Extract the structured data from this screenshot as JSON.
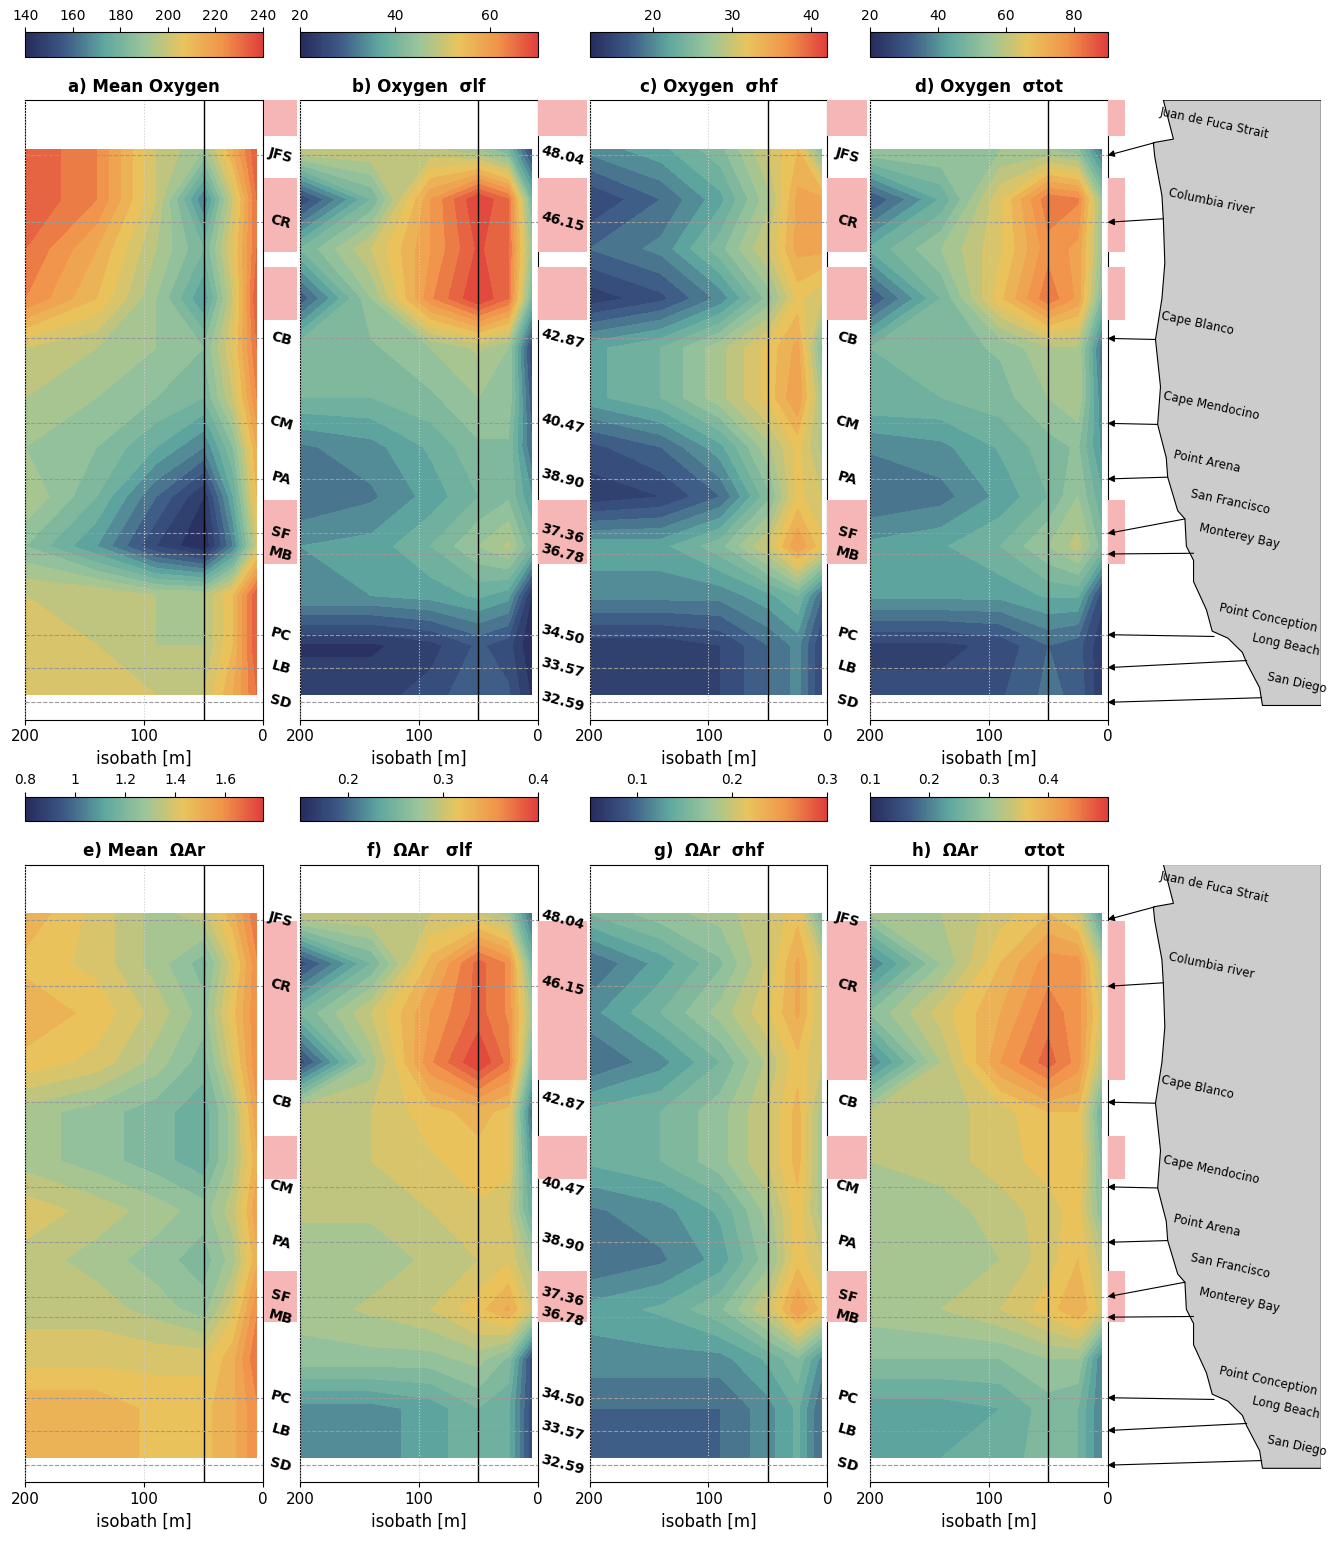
{
  "chart_data": [
    {
      "type": "heatmap",
      "title": "a) Mean Oxygen",
      "xlabel": "isobath [m]",
      "x": [
        200,
        140,
        90,
        50,
        25,
        5
      ],
      "y": [
        48.2,
        46.8,
        45.4,
        44.0,
        42.6,
        41.2,
        39.8,
        38.4,
        37.0,
        35.6,
        34.2,
        32.8
      ],
      "cells": [
        [
          235,
          225,
          200,
          190,
          215,
          235
        ],
        [
          235,
          225,
          200,
          165,
          200,
          230
        ],
        [
          230,
          215,
          195,
          180,
          205,
          230
        ],
        [
          225,
          210,
          190,
          170,
          200,
          235
        ],
        [
          200,
          195,
          190,
          185,
          205,
          230
        ],
        [
          195,
          190,
          185,
          180,
          200,
          225
        ],
        [
          190,
          185,
          175,
          165,
          185,
          215
        ],
        [
          195,
          180,
          160,
          145,
          175,
          210
        ],
        [
          185,
          170,
          150,
          140,
          165,
          200
        ],
        [
          200,
          200,
          195,
          195,
          210,
          235
        ],
        [
          205,
          200,
          195,
          195,
          210,
          235
        ],
        [
          205,
          205,
          200,
          200,
          215,
          230
        ]
      ],
      "xlim": [
        200,
        0
      ],
      "xticks": [
        200,
        100,
        0
      ],
      "colorbar_range": [
        140,
        240
      ],
      "colorbar_ticks": [
        140,
        160,
        180,
        200,
        220,
        240
      ],
      "vline": 50,
      "grid": true,
      "tick_labels": "x"
    },
    {
      "type": "heatmap",
      "title": "b) Oxygen  σlf",
      "xlabel": "isobath [m]",
      "x": [
        200,
        140,
        90,
        50,
        25,
        5
      ],
      "y": [
        48.2,
        46.8,
        45.4,
        44.0,
        42.6,
        41.2,
        39.8,
        38.4,
        37.0,
        35.6,
        34.2,
        32.8
      ],
      "cells": [
        [
          50,
          50,
          48,
          45,
          40,
          25
        ],
        [
          25,
          40,
          60,
          70,
          65,
          40
        ],
        [
          40,
          50,
          60,
          68,
          65,
          45
        ],
        [
          28,
          45,
          62,
          70,
          65,
          40
        ],
        [
          42,
          42,
          45,
          48,
          45,
          25
        ],
        [
          40,
          40,
          42,
          45,
          45,
          28
        ],
        [
          32,
          34,
          38,
          42,
          42,
          30
        ],
        [
          30,
          32,
          36,
          40,
          42,
          35
        ],
        [
          35,
          36,
          40,
          45,
          48,
          40
        ],
        [
          35,
          35,
          36,
          38,
          36,
          22
        ],
        [
          22,
          22,
          24,
          28,
          26,
          20
        ],
        [
          24,
          24,
          26,
          30,
          28,
          22
        ]
      ],
      "xlim": [
        200,
        0
      ],
      "xticks": [
        200,
        100,
        0
      ],
      "colorbar_range": [
        20,
        70
      ],
      "colorbar_ticks": [
        20,
        40,
        60
      ],
      "vline": 50,
      "grid": true,
      "tick_labels": "x"
    },
    {
      "type": "heatmap",
      "title": "c) Oxygen  σhf",
      "xlabel": "isobath [m]",
      "x": [
        200,
        140,
        90,
        50,
        25,
        5
      ],
      "y": [
        48.2,
        46.8,
        45.4,
        44.0,
        42.6,
        41.2,
        39.8,
        38.4,
        37.0,
        35.6,
        34.2,
        32.8
      ],
      "cells": [
        [
          20,
          22,
          25,
          30,
          33,
          25
        ],
        [
          15,
          18,
          22,
          28,
          35,
          35
        ],
        [
          18,
          20,
          25,
          30,
          35,
          35
        ],
        [
          14,
          16,
          20,
          26,
          32,
          30
        ],
        [
          22,
          24,
          28,
          32,
          35,
          25
        ],
        [
          22,
          24,
          28,
          32,
          36,
          28
        ],
        [
          16,
          18,
          22,
          28,
          32,
          28
        ],
        [
          14,
          15,
          18,
          25,
          32,
          30
        ],
        [
          22,
          22,
          25,
          30,
          36,
          32
        ],
        [
          20,
          20,
          20,
          22,
          24,
          18
        ],
        [
          14,
          14,
          15,
          18,
          20,
          15
        ],
        [
          14,
          14,
          15,
          18,
          20,
          15
        ]
      ],
      "xlim": [
        200,
        0
      ],
      "xticks": [
        200,
        100,
        0
      ],
      "colorbar_range": [
        12,
        42
      ],
      "colorbar_ticks": [
        20,
        30,
        40
      ],
      "vline": 50,
      "grid": true,
      "tick_labels": "x"
    },
    {
      "type": "heatmap",
      "title": "d) Oxygen  σtot",
      "xlabel": "isobath [m]",
      "x": [
        200,
        140,
        90,
        50,
        25,
        5
      ],
      "y": [
        48.2,
        46.8,
        45.4,
        44.0,
        42.6,
        41.2,
        39.8,
        38.4,
        37.0,
        35.6,
        34.2,
        32.8
      ],
      "cells": [
        [
          55,
          55,
          55,
          55,
          52,
          35
        ],
        [
          30,
          45,
          65,
          82,
          80,
          55
        ],
        [
          45,
          55,
          65,
          78,
          75,
          55
        ],
        [
          30,
          48,
          68,
          82,
          75,
          50
        ],
        [
          48,
          50,
          52,
          58,
          58,
          35
        ],
        [
          48,
          48,
          50,
          55,
          58,
          38
        ],
        [
          38,
          40,
          45,
          50,
          52,
          40
        ],
        [
          34,
          36,
          42,
          48,
          55,
          45
        ],
        [
          42,
          44,
          48,
          55,
          60,
          50
        ],
        [
          42,
          42,
          42,
          45,
          45,
          28
        ],
        [
          26,
          26,
          28,
          34,
          32,
          24
        ],
        [
          28,
          28,
          30,
          35,
          33,
          24
        ]
      ],
      "xlim": [
        200,
        0
      ],
      "xticks": [
        200,
        100,
        0
      ],
      "colorbar_range": [
        20,
        90
      ],
      "colorbar_ticks": [
        20,
        40,
        60,
        80
      ],
      "vline": 50,
      "grid": true,
      "tick_labels": "x"
    },
    {
      "type": "heatmap",
      "title": "e) Mean  ΩAr",
      "xlabel": "isobath [m]",
      "x": [
        200,
        140,
        90,
        50,
        25,
        5
      ],
      "y": [
        48.2,
        46.8,
        45.4,
        44.0,
        42.6,
        41.2,
        39.8,
        38.4,
        37.0,
        35.6,
        34.2,
        32.8
      ],
      "cells": [
        [
          1.5,
          1.4,
          1.3,
          1.35,
          1.5,
          1.65
        ],
        [
          1.45,
          1.4,
          1.3,
          1.2,
          1.4,
          1.6
        ],
        [
          1.5,
          1.45,
          1.35,
          1.25,
          1.45,
          1.6
        ],
        [
          1.45,
          1.4,
          1.3,
          1.2,
          1.4,
          1.6
        ],
        [
          1.3,
          1.25,
          1.2,
          1.15,
          1.3,
          1.55
        ],
        [
          1.3,
          1.25,
          1.2,
          1.15,
          1.3,
          1.5
        ],
        [
          1.4,
          1.35,
          1.3,
          1.25,
          1.35,
          1.55
        ],
        [
          1.35,
          1.3,
          1.25,
          1.2,
          1.3,
          1.5
        ],
        [
          1.35,
          1.35,
          1.3,
          1.25,
          1.4,
          1.6
        ],
        [
          1.4,
          1.4,
          1.4,
          1.4,
          1.5,
          1.65
        ],
        [
          1.5,
          1.5,
          1.45,
          1.45,
          1.5,
          1.6
        ],
        [
          1.5,
          1.5,
          1.45,
          1.45,
          1.5,
          1.6
        ]
      ],
      "xlim": [
        200,
        0
      ],
      "xticks": [
        200,
        100,
        0
      ],
      "colorbar_range": [
        0.8,
        1.75
      ],
      "colorbar_ticks": [
        0.8,
        1,
        1.2,
        1.4,
        1.6
      ],
      "vline": 50,
      "grid": true,
      "tick_labels": "x"
    },
    {
      "type": "heatmap",
      "title": "f)  ΩAr   σlf",
      "xlabel": "isobath [m]",
      "x": [
        200,
        140,
        90,
        50,
        25,
        5
      ],
      "y": [
        48.2,
        46.8,
        45.4,
        44.0,
        42.6,
        41.2,
        39.8,
        38.4,
        37.0,
        35.6,
        34.2,
        32.8
      ],
      "cells": [
        [
          0.3,
          0.3,
          0.3,
          0.3,
          0.28,
          0.2
        ],
        [
          0.18,
          0.25,
          0.33,
          0.38,
          0.36,
          0.25
        ],
        [
          0.25,
          0.3,
          0.35,
          0.38,
          0.36,
          0.28
        ],
        [
          0.18,
          0.28,
          0.36,
          0.4,
          0.37,
          0.25
        ],
        [
          0.3,
          0.3,
          0.32,
          0.33,
          0.32,
          0.2
        ],
        [
          0.3,
          0.3,
          0.31,
          0.32,
          0.32,
          0.22
        ],
        [
          0.29,
          0.29,
          0.3,
          0.31,
          0.3,
          0.24
        ],
        [
          0.28,
          0.28,
          0.29,
          0.3,
          0.31,
          0.28
        ],
        [
          0.28,
          0.29,
          0.3,
          0.32,
          0.34,
          0.3
        ],
        [
          0.27,
          0.27,
          0.27,
          0.28,
          0.26,
          0.18
        ],
        [
          0.22,
          0.22,
          0.23,
          0.25,
          0.24,
          0.18
        ],
        [
          0.22,
          0.22,
          0.23,
          0.25,
          0.24,
          0.18
        ]
      ],
      "xlim": [
        200,
        0
      ],
      "xticks": [
        200,
        100,
        0
      ],
      "colorbar_range": [
        0.15,
        0.4
      ],
      "colorbar_ticks": [
        0.2,
        0.3,
        0.4
      ],
      "vline": 50,
      "grid": true,
      "tick_labels": "x"
    },
    {
      "type": "heatmap",
      "title": "g)  ΩAr  σhf",
      "xlabel": "isobath [m]",
      "x": [
        200,
        140,
        90,
        50,
        25,
        5
      ],
      "y": [
        48.2,
        46.8,
        45.4,
        44.0,
        42.6,
        41.2,
        39.8,
        38.4,
        37.0,
        35.6,
        34.2,
        32.8
      ],
      "cells": [
        [
          0.15,
          0.17,
          0.18,
          0.2,
          0.22,
          0.15
        ],
        [
          0.1,
          0.13,
          0.16,
          0.2,
          0.24,
          0.2
        ],
        [
          0.12,
          0.15,
          0.18,
          0.21,
          0.24,
          0.2
        ],
        [
          0.1,
          0.12,
          0.15,
          0.19,
          0.22,
          0.2
        ],
        [
          0.14,
          0.15,
          0.17,
          0.2,
          0.23,
          0.18
        ],
        [
          0.14,
          0.15,
          0.17,
          0.2,
          0.23,
          0.18
        ],
        [
          0.11,
          0.12,
          0.14,
          0.18,
          0.22,
          0.18
        ],
        [
          0.1,
          0.11,
          0.13,
          0.17,
          0.22,
          0.2
        ],
        [
          0.13,
          0.14,
          0.16,
          0.2,
          0.25,
          0.22
        ],
        [
          0.12,
          0.12,
          0.12,
          0.14,
          0.16,
          0.12
        ],
        [
          0.1,
          0.1,
          0.1,
          0.12,
          0.14,
          0.1
        ],
        [
          0.1,
          0.1,
          0.1,
          0.12,
          0.14,
          0.1
        ]
      ],
      "xlim": [
        200,
        0
      ],
      "xticks": [
        200,
        100,
        0
      ],
      "colorbar_range": [
        0.05,
        0.3
      ],
      "colorbar_ticks": [
        0.1,
        0.2,
        0.3
      ],
      "vline": 50,
      "grid": true,
      "tick_labels": "x"
    },
    {
      "type": "heatmap",
      "title": "h)  ΩAr        σtot",
      "xlabel": "isobath [m]",
      "x": [
        200,
        140,
        90,
        50,
        25,
        5
      ],
      "y": [
        48.2,
        46.8,
        45.4,
        44.0,
        42.6,
        41.2,
        39.8,
        38.4,
        37.0,
        35.6,
        34.2,
        32.8
      ],
      "cells": [
        [
          0.3,
          0.32,
          0.35,
          0.38,
          0.35,
          0.22
        ],
        [
          0.2,
          0.3,
          0.38,
          0.43,
          0.43,
          0.32
        ],
        [
          0.28,
          0.35,
          0.4,
          0.45,
          0.43,
          0.35
        ],
        [
          0.2,
          0.32,
          0.42,
          0.47,
          0.43,
          0.32
        ],
        [
          0.32,
          0.33,
          0.35,
          0.38,
          0.38,
          0.25
        ],
        [
          0.32,
          0.33,
          0.35,
          0.37,
          0.38,
          0.27
        ],
        [
          0.31,
          0.31,
          0.33,
          0.35,
          0.37,
          0.28
        ],
        [
          0.3,
          0.3,
          0.32,
          0.35,
          0.38,
          0.33
        ],
        [
          0.31,
          0.32,
          0.34,
          0.37,
          0.4,
          0.35
        ],
        [
          0.28,
          0.28,
          0.28,
          0.3,
          0.3,
          0.2
        ],
        [
          0.23,
          0.23,
          0.24,
          0.27,
          0.26,
          0.2
        ],
        [
          0.24,
          0.24,
          0.25,
          0.27,
          0.26,
          0.2
        ]
      ],
      "xlim": [
        200,
        0
      ],
      "xticks": [
        200,
        100,
        0
      ],
      "colorbar_range": [
        0.1,
        0.5
      ],
      "colorbar_ticks": [
        0.1,
        0.2,
        0.3,
        0.4
      ],
      "vline": 50,
      "grid": true,
      "tick_labels": "x"
    }
  ],
  "ylim": [
    32.1,
    49.6
  ],
  "regions": [
    {
      "label": "JFS",
      "lat": 48.04,
      "lat_label": "48.04"
    },
    {
      "label": "CR",
      "lat": 46.15,
      "lat_label": "46.15"
    },
    {
      "label": "CB",
      "lat": 42.87,
      "lat_label": "42.87"
    },
    {
      "label": "CM",
      "lat": 40.47,
      "lat_label": "40.47"
    },
    {
      "label": "PA",
      "lat": 38.9,
      "lat_label": "38.90"
    },
    {
      "label": "SF",
      "lat": 37.36,
      "lat_label": "37.36"
    },
    {
      "label": "MB",
      "lat": 36.78,
      "lat_label": "36.78"
    },
    {
      "label": "PC",
      "lat": 34.5,
      "lat_label": "34.50"
    },
    {
      "label": "LB",
      "lat": 33.57,
      "lat_label": "33.57"
    },
    {
      "label": "SD",
      "lat": 32.59,
      "lat_label": "32.59"
    }
  ],
  "shaded_bands": {
    "top": [
      [
        48.6,
        49.6
      ],
      [
        45.3,
        47.4
      ],
      [
        43.4,
        44.9
      ],
      [
        36.5,
        38.3
      ]
    ],
    "bottom": [
      [
        43.5,
        48.0
      ],
      [
        40.7,
        41.9
      ],
      [
        36.65,
        38.1
      ]
    ]
  },
  "map": {
    "xlim": [
      -126.5,
      -113
    ],
    "land_lon": [
      -113,
      -124.0,
      -123.3,
      -124.7,
      -124.6,
      -124.1,
      -124.0,
      -123.9,
      -124.1,
      -124.55,
      -124.2,
      -124.4,
      -123.8,
      -123.7,
      -123.0,
      -122.5,
      -122.4,
      -121.9,
      -121.9,
      -121.0,
      -120.6,
      -119.5,
      -118.5,
      -118.2,
      -117.3,
      -117.1,
      -113
    ],
    "land_lat": [
      49.6,
      49.6,
      48.5,
      48.4,
      48.0,
      46.9,
      46.2,
      45.0,
      44.0,
      42.84,
      41.5,
      40.44,
      39.5,
      38.95,
      38.0,
      37.77,
      37.0,
      36.6,
      36.0,
      35.2,
      34.6,
      34.4,
      34.0,
      33.7,
      33.0,
      32.5,
      32.5
    ],
    "places": [
      {
        "name": "Juan de Fuca Strait",
        "lon": -124.6,
        "lat": 48.4,
        "region": "JFS"
      },
      {
        "name": "Columbia river",
        "lon": -124.0,
        "lat": 46.25,
        "region": "CR"
      },
      {
        "name": "Cape Blanco",
        "lon": -124.55,
        "lat": 42.84,
        "region": "CB"
      },
      {
        "name": "Cape Mendocino",
        "lon": -124.4,
        "lat": 40.44,
        "region": "CM"
      },
      {
        "name": "Point Arena",
        "lon": -123.7,
        "lat": 38.95,
        "region": "PA"
      },
      {
        "name": "San Francisco",
        "lon": -122.5,
        "lat": 37.77,
        "region": "SF"
      },
      {
        "name": "Monterey Bay",
        "lon": -121.9,
        "lat": 36.8,
        "region": "MB"
      },
      {
        "name": "Point Conception",
        "lon": -120.47,
        "lat": 34.45,
        "region": "PC"
      },
      {
        "name": "Long Beach",
        "lon": -118.2,
        "lat": 33.77,
        "region": "LB"
      },
      {
        "name": "San Diego",
        "lon": -117.16,
        "lat": 32.72,
        "region": "SD"
      }
    ]
  }
}
